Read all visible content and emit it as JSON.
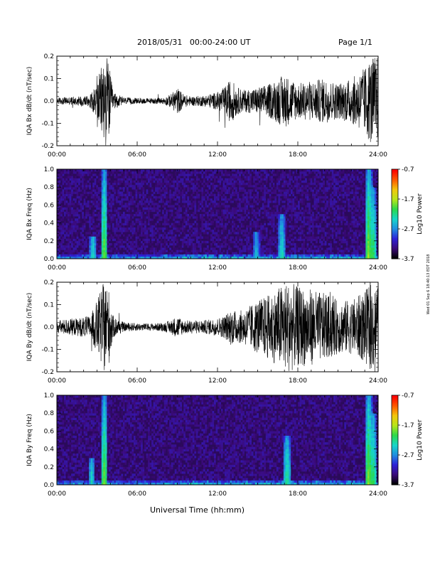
{
  "header": {
    "title": "2018/05/31   00:00-24:00 UT",
    "page_label": "Page 1/1"
  },
  "footer": {
    "xlabel": "Universal Time (hh:mm)"
  },
  "side_stamp": "Wed 01 Sep 6 18:40:13 EDT 2018",
  "colors": {
    "trace": "#000000",
    "spectrogram_background": "#2a0b5a",
    "colorbar": [
      "#000000",
      "#3b0a7a",
      "#2e22d8",
      "#1f8fe0",
      "#17d6c9",
      "#2bd94b",
      "#b6e61a",
      "#f2c70c",
      "#ff5a00",
      "#ff0000"
    ]
  },
  "chart_data": [
    {
      "type": "line",
      "name": "bx-dbdt",
      "ylabel": "IQA Bx dB/dt (nT/sec)",
      "xlim": [
        0,
        24
      ],
      "ylim": [
        -0.2,
        0.2
      ],
      "x_ticks": [
        "00:00",
        "06:00",
        "12:00",
        "18:00",
        "24:00"
      ],
      "y_ticks": [
        "-0.2",
        "-0.1",
        "0.0",
        "0.1",
        "0.2"
      ],
      "amplitude_envelope": {
        "hours": [
          0,
          1.5,
          2.5,
          3,
          3.5,
          3.8,
          4.2,
          5,
          7,
          8,
          8.5,
          9,
          9.5,
          10,
          11,
          12,
          12.5,
          13,
          13.5,
          14,
          15,
          16,
          17,
          17.5,
          18,
          19,
          20,
          21,
          22,
          23,
          23.5,
          24
        ],
        "amplitude": [
          0.015,
          0.02,
          0.03,
          0.08,
          0.2,
          0.2,
          0.04,
          0.015,
          0.012,
          0.015,
          0.03,
          0.06,
          0.03,
          0.02,
          0.025,
          0.04,
          0.06,
          0.1,
          0.06,
          0.05,
          0.06,
          0.08,
          0.12,
          0.1,
          0.08,
          0.09,
          0.1,
          0.08,
          0.1,
          0.15,
          0.2,
          0.2
        ]
      }
    },
    {
      "type": "heatmap",
      "name": "bx-spectrogram",
      "ylabel": "IQA Bx Freq (Hz)",
      "xlim": [
        0,
        24
      ],
      "ylim": [
        0,
        1.0
      ],
      "x_ticks": [
        "00:00",
        "06:00",
        "12:00",
        "18:00",
        "24:00"
      ],
      "y_ticks": [
        "0.0",
        "0.2",
        "0.4",
        "0.6",
        "0.8",
        "1.0"
      ],
      "colorbar_label": "Log10 Power",
      "colorbar_ticks": [
        "-0.7",
        "-1.7",
        "-2.7",
        "-3.7"
      ],
      "zlim": [
        -3.7,
        -0.7
      ],
      "bright_bands": [
        {
          "hour": 2.7,
          "fmax": 0.25,
          "level": -2.4
        },
        {
          "hour": 3.55,
          "fmax": 1.0,
          "level": -1.9
        },
        {
          "hour": 14.9,
          "fmax": 0.3,
          "level": -2.5
        },
        {
          "hour": 16.8,
          "fmax": 0.5,
          "level": -2.3
        },
        {
          "hour": 23.3,
          "fmax": 1.0,
          "level": -1.8
        },
        {
          "hour": 23.6,
          "fmax": 0.8,
          "level": -2.0
        }
      ]
    },
    {
      "type": "line",
      "name": "by-dbdt",
      "ylabel": "IQA By dB/dt (nT/sec)",
      "xlim": [
        0,
        24
      ],
      "ylim": [
        -0.2,
        0.2
      ],
      "x_ticks": [
        "00:00",
        "06:00",
        "12:00",
        "18:00",
        "24:00"
      ],
      "y_ticks": [
        "-0.2",
        "-0.1",
        "0.0",
        "0.1",
        "0.2"
      ],
      "amplitude_envelope": {
        "hours": [
          0,
          1.5,
          2.5,
          3,
          3.5,
          3.8,
          4.2,
          5,
          7,
          8,
          8.5,
          9,
          9.5,
          10,
          11,
          12,
          12.5,
          13,
          13.5,
          14,
          15,
          16,
          17,
          17.5,
          18,
          19,
          20,
          21,
          22,
          23,
          23.5,
          24
        ],
        "amplitude": [
          0.03,
          0.04,
          0.05,
          0.12,
          0.2,
          0.2,
          0.05,
          0.02,
          0.015,
          0.02,
          0.03,
          0.05,
          0.03,
          0.03,
          0.03,
          0.04,
          0.05,
          0.08,
          0.07,
          0.08,
          0.12,
          0.15,
          0.2,
          0.2,
          0.18,
          0.17,
          0.15,
          0.12,
          0.12,
          0.16,
          0.2,
          0.18
        ]
      }
    },
    {
      "type": "heatmap",
      "name": "by-spectrogram",
      "ylabel": "IQA By Freq (Hz)",
      "xlim": [
        0,
        24
      ],
      "ylim": [
        0,
        1.0
      ],
      "x_ticks": [
        "00:00",
        "06:00",
        "12:00",
        "18:00",
        "24:00"
      ],
      "y_ticks": [
        "0.0",
        "0.2",
        "0.4",
        "0.6",
        "0.8",
        "1.0"
      ],
      "colorbar_label": "Log10 Power",
      "colorbar_ticks": [
        "-0.7",
        "-1.7",
        "-2.7",
        "-3.7"
      ],
      "zlim": [
        -3.7,
        -0.7
      ],
      "bright_bands": [
        {
          "hour": 2.6,
          "fmax": 0.3,
          "level": -2.4
        },
        {
          "hour": 3.55,
          "fmax": 1.0,
          "level": -1.9
        },
        {
          "hour": 17.2,
          "fmax": 0.55,
          "level": -2.2
        },
        {
          "hour": 23.3,
          "fmax": 1.0,
          "level": -1.8
        },
        {
          "hour": 23.6,
          "fmax": 0.8,
          "level": -2.0
        }
      ]
    }
  ]
}
